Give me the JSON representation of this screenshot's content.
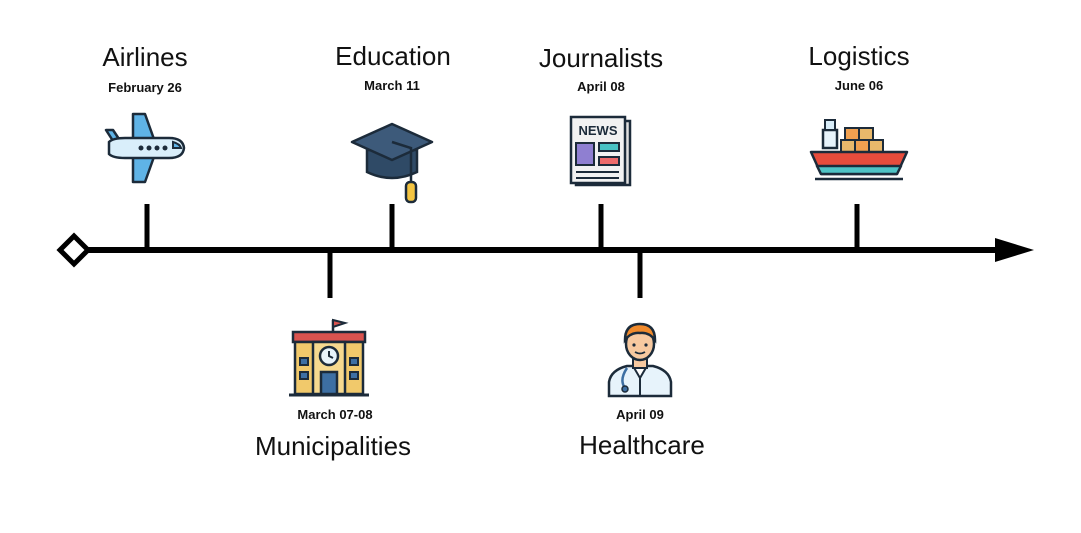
{
  "timeline": {
    "events": [
      {
        "id": "airlines",
        "title": "Airlines",
        "date": "February 26",
        "icon": "airplane-icon",
        "side": "top"
      },
      {
        "id": "municipalities",
        "title": "Municipalities",
        "date": "March 07-08",
        "icon": "city-hall-icon",
        "side": "bottom"
      },
      {
        "id": "education",
        "title": "Education",
        "date": "March 11",
        "icon": "graduation-cap-icon",
        "side": "top"
      },
      {
        "id": "journalists",
        "title": "Journalists",
        "date": "April 08",
        "icon": "newspaper-icon",
        "side": "top"
      },
      {
        "id": "healthcare",
        "title": "Healthcare",
        "date": "April 09",
        "icon": "doctor-icon",
        "side": "bottom"
      },
      {
        "id": "logistics",
        "title": "Logistics",
        "date": "June 06",
        "icon": "cargo-ship-icon",
        "side": "top"
      }
    ],
    "colors": {
      "line": "#000000",
      "plane_body": "#d9eefa",
      "plane_accent": "#5fb3e6",
      "cap": "#2f4a66",
      "tassel": "#f4c542",
      "paper": "#f2f2f2",
      "news_purple": "#8f7fd1",
      "news_teal": "#48c2c4",
      "news_red": "#ee6b6b",
      "building": "#f1c96b",
      "roof": "#d9534f",
      "window": "#3d6fa3",
      "skin": "#f7c9a0",
      "hair": "#f08a2c",
      "coat": "#e7f3fb",
      "ship_hull": "#e74c3c",
      "ship_stripe": "#4fc3c5",
      "crate": "#f0a050"
    }
  }
}
